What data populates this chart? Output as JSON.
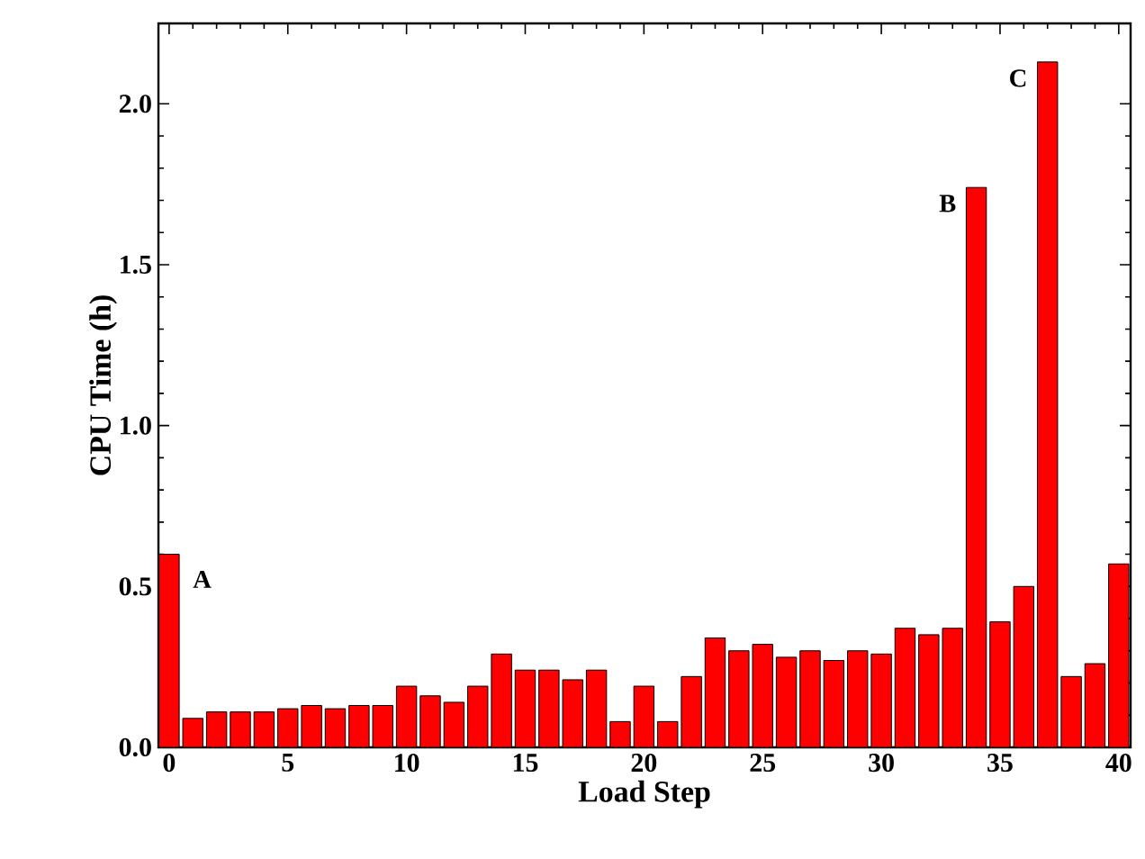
{
  "chart_data": {
    "type": "bar",
    "xlabel": "Load Step",
    "ylabel": "CPU Time (h)",
    "x": [
      0,
      1,
      2,
      3,
      4,
      5,
      6,
      7,
      8,
      9,
      10,
      11,
      12,
      13,
      14,
      15,
      16,
      17,
      18,
      19,
      20,
      21,
      22,
      23,
      24,
      25,
      26,
      27,
      28,
      29,
      30,
      31,
      32,
      33,
      34,
      35,
      36,
      37,
      38,
      39,
      40
    ],
    "values": [
      0.6,
      0.09,
      0.11,
      0.11,
      0.11,
      0.12,
      0.13,
      0.12,
      0.13,
      0.13,
      0.19,
      0.16,
      0.14,
      0.19,
      0.29,
      0.24,
      0.24,
      0.21,
      0.24,
      0.08,
      0.19,
      0.08,
      0.22,
      0.34,
      0.3,
      0.32,
      0.28,
      0.3,
      0.27,
      0.3,
      0.29,
      0.37,
      0.35,
      0.37,
      1.74,
      0.39,
      0.5,
      2.13,
      0.22,
      0.26,
      0.57
    ],
    "color": "#ff0000",
    "xlim": [
      -0.45,
      40.5
    ],
    "ylim": [
      0,
      2.25
    ],
    "xticks": [
      0,
      5,
      10,
      15,
      20,
      25,
      30,
      35,
      40
    ],
    "yticks": [
      {
        "value": 0,
        "label": "0.0"
      },
      {
        "value": 0.5,
        "label": "0.5"
      },
      {
        "value": 1.0,
        "label": "1.0"
      },
      {
        "value": 1.5,
        "label": "1.5"
      },
      {
        "value": 2.0,
        "label": "2.0"
      }
    ],
    "annotations": [
      {
        "text": "A",
        "x": 0,
        "y": 0.6
      },
      {
        "text": "B",
        "x": 34,
        "y": 1.74
      },
      {
        "text": "C",
        "x": 37,
        "y": 2.13
      }
    ]
  }
}
